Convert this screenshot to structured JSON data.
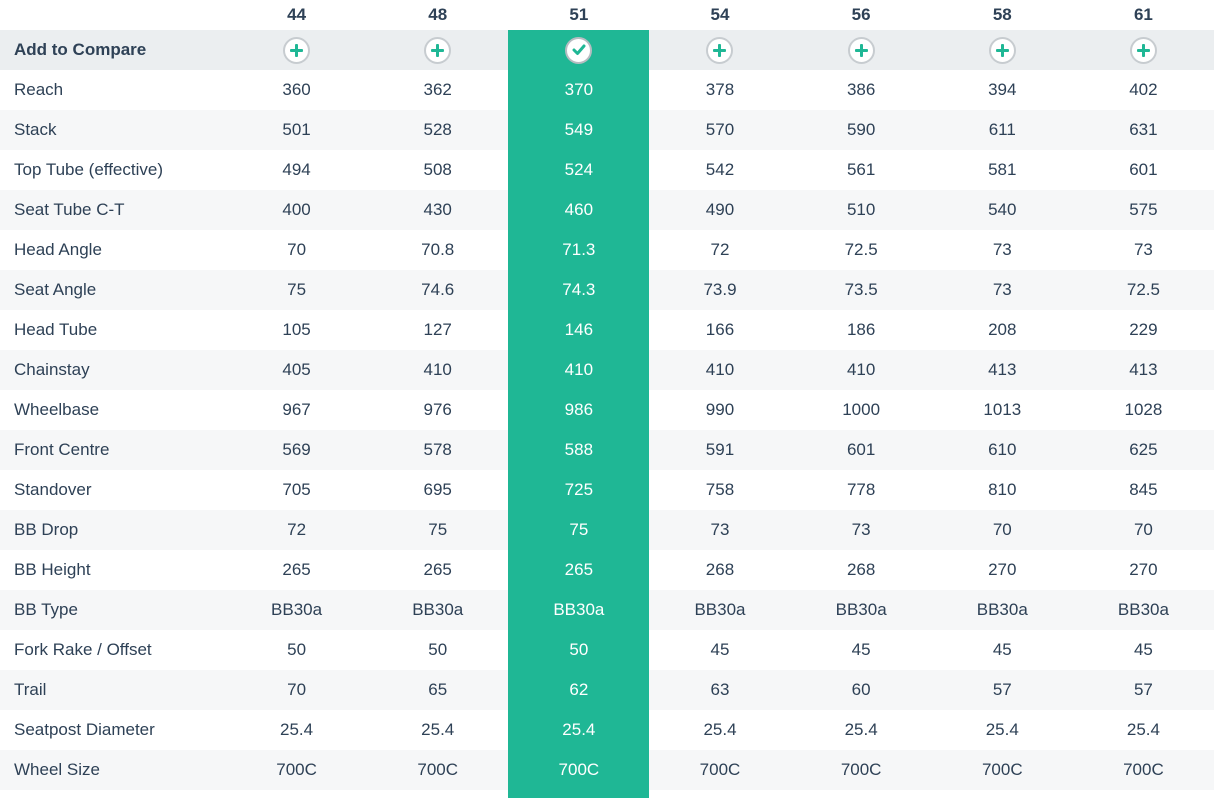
{
  "table": {
    "accent_color": "#1fb795",
    "text_color": "#2e4156",
    "compare_row_bg": "#ebeef0",
    "alt_row_bg": "#f6f7f8",
    "header_sizes": [
      "44",
      "48",
      "51",
      "54",
      "56",
      "58",
      "61"
    ],
    "selected_size": "51",
    "selected_index": 2,
    "compare_row": {
      "label": "Add to Compare",
      "unselected_icon": "plus-icon",
      "selected_icon": "check-icon"
    },
    "rows": [
      {
        "label": "Reach",
        "values": [
          "360",
          "362",
          "370",
          "378",
          "386",
          "394",
          "402"
        ]
      },
      {
        "label": "Stack",
        "values": [
          "501",
          "528",
          "549",
          "570",
          "590",
          "611",
          "631"
        ]
      },
      {
        "label": "Top Tube (effective)",
        "values": [
          "494",
          "508",
          "524",
          "542",
          "561",
          "581",
          "601"
        ]
      },
      {
        "label": "Seat Tube C-T",
        "values": [
          "400",
          "430",
          "460",
          "490",
          "510",
          "540",
          "575"
        ]
      },
      {
        "label": "Head Angle",
        "values": [
          "70",
          "70.8",
          "71.3",
          "72",
          "72.5",
          "73",
          "73"
        ]
      },
      {
        "label": "Seat Angle",
        "values": [
          "75",
          "74.6",
          "74.3",
          "73.9",
          "73.5",
          "73",
          "72.5"
        ]
      },
      {
        "label": "Head Tube",
        "values": [
          "105",
          "127",
          "146",
          "166",
          "186",
          "208",
          "229"
        ]
      },
      {
        "label": "Chainstay",
        "values": [
          "405",
          "410",
          "410",
          "410",
          "410",
          "413",
          "413"
        ]
      },
      {
        "label": "Wheelbase",
        "values": [
          "967",
          "976",
          "986",
          "990",
          "1000",
          "1013",
          "1028"
        ]
      },
      {
        "label": "Front Centre",
        "values": [
          "569",
          "578",
          "588",
          "591",
          "601",
          "610",
          "625"
        ]
      },
      {
        "label": "Standover",
        "values": [
          "705",
          "695",
          "725",
          "758",
          "778",
          "810",
          "845"
        ]
      },
      {
        "label": "BB Drop",
        "values": [
          "72",
          "75",
          "75",
          "73",
          "73",
          "70",
          "70"
        ]
      },
      {
        "label": "BB Height",
        "values": [
          "265",
          "265",
          "265",
          "268",
          "268",
          "270",
          "270"
        ]
      },
      {
        "label": "BB Type",
        "values": [
          "BB30a",
          "BB30a",
          "BB30a",
          "BB30a",
          "BB30a",
          "BB30a",
          "BB30a"
        ]
      },
      {
        "label": "Fork Rake / Offset",
        "values": [
          "50",
          "50",
          "50",
          "45",
          "45",
          "45",
          "45"
        ]
      },
      {
        "label": "Trail",
        "values": [
          "70",
          "65",
          "62",
          "63",
          "60",
          "57",
          "57"
        ]
      },
      {
        "label": "Seatpost Diameter",
        "values": [
          "25.4",
          "25.4",
          "25.4",
          "25.4",
          "25.4",
          "25.4",
          "25.4"
        ]
      },
      {
        "label": "Wheel Size",
        "values": [
          "700C",
          "700C",
          "700C",
          "700C",
          "700C",
          "700C",
          "700C"
        ]
      }
    ]
  }
}
